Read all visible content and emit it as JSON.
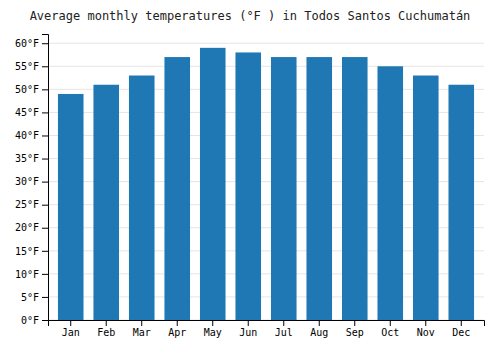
{
  "chart_data": {
    "type": "bar",
    "title": "Average monthly temperatures (°F ) in Todos Santos Cuchumatán",
    "categories": [
      "Jan",
      "Feb",
      "Mar",
      "Apr",
      "May",
      "Jun",
      "Jul",
      "Aug",
      "Sep",
      "Oct",
      "Nov",
      "Dec"
    ],
    "values": [
      49,
      51,
      53,
      57,
      59,
      58,
      57,
      57,
      57,
      55,
      53,
      51
    ],
    "ylim": [
      0,
      62
    ],
    "yticks": [
      {
        "value": 0,
        "label": "0°F"
      },
      {
        "value": 5,
        "label": "5°F"
      },
      {
        "value": 10,
        "label": "10°F"
      },
      {
        "value": 15,
        "label": "15°F"
      },
      {
        "value": 20,
        "label": "20°F"
      },
      {
        "value": 25,
        "label": "25°F"
      },
      {
        "value": 30,
        "label": "30°F"
      },
      {
        "value": 35,
        "label": "35°F"
      },
      {
        "value": 40,
        "label": "40°F"
      },
      {
        "value": 45,
        "label": "45°F"
      },
      {
        "value": 50,
        "label": "50°F"
      },
      {
        "value": 55,
        "label": "55°F"
      },
      {
        "value": 60,
        "label": "60°F"
      }
    ],
    "grid": true
  }
}
